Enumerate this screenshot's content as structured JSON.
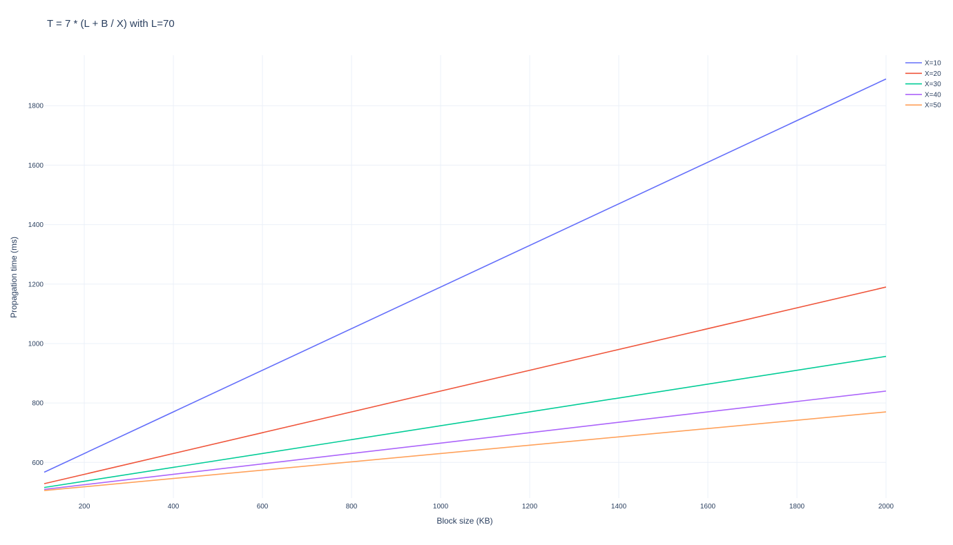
{
  "chart_data": {
    "type": "line",
    "title": "T = 7 * (L + B / X) with L=70",
    "xlabel": "Block size (KB)",
    "ylabel": "Propagation time (ms)",
    "xlim": [
      110,
      2000
    ],
    "ylim": [
      480,
      1970
    ],
    "x_ticks": [
      200,
      400,
      600,
      800,
      1000,
      1200,
      1400,
      1600,
      1800,
      2000
    ],
    "y_ticks": [
      600,
      800,
      1000,
      1200,
      1400,
      1600,
      1800
    ],
    "grid": true,
    "legend_position": "top-right",
    "x": [
      110,
      2000
    ],
    "series": [
      {
        "name": "X=10",
        "color": "#636efa",
        "values": [
          567,
          1890
        ]
      },
      {
        "name": "X=20",
        "color": "#ef553b",
        "values": [
          528.5,
          1190
        ]
      },
      {
        "name": "X=30",
        "color": "#00cc96",
        "values": [
          515.7,
          956.7
        ]
      },
      {
        "name": "X=40",
        "color": "#ab63fa",
        "values": [
          509.3,
          840
        ]
      },
      {
        "name": "X=50",
        "color": "#ffa15a",
        "values": [
          505.4,
          770
        ]
      }
    ]
  }
}
